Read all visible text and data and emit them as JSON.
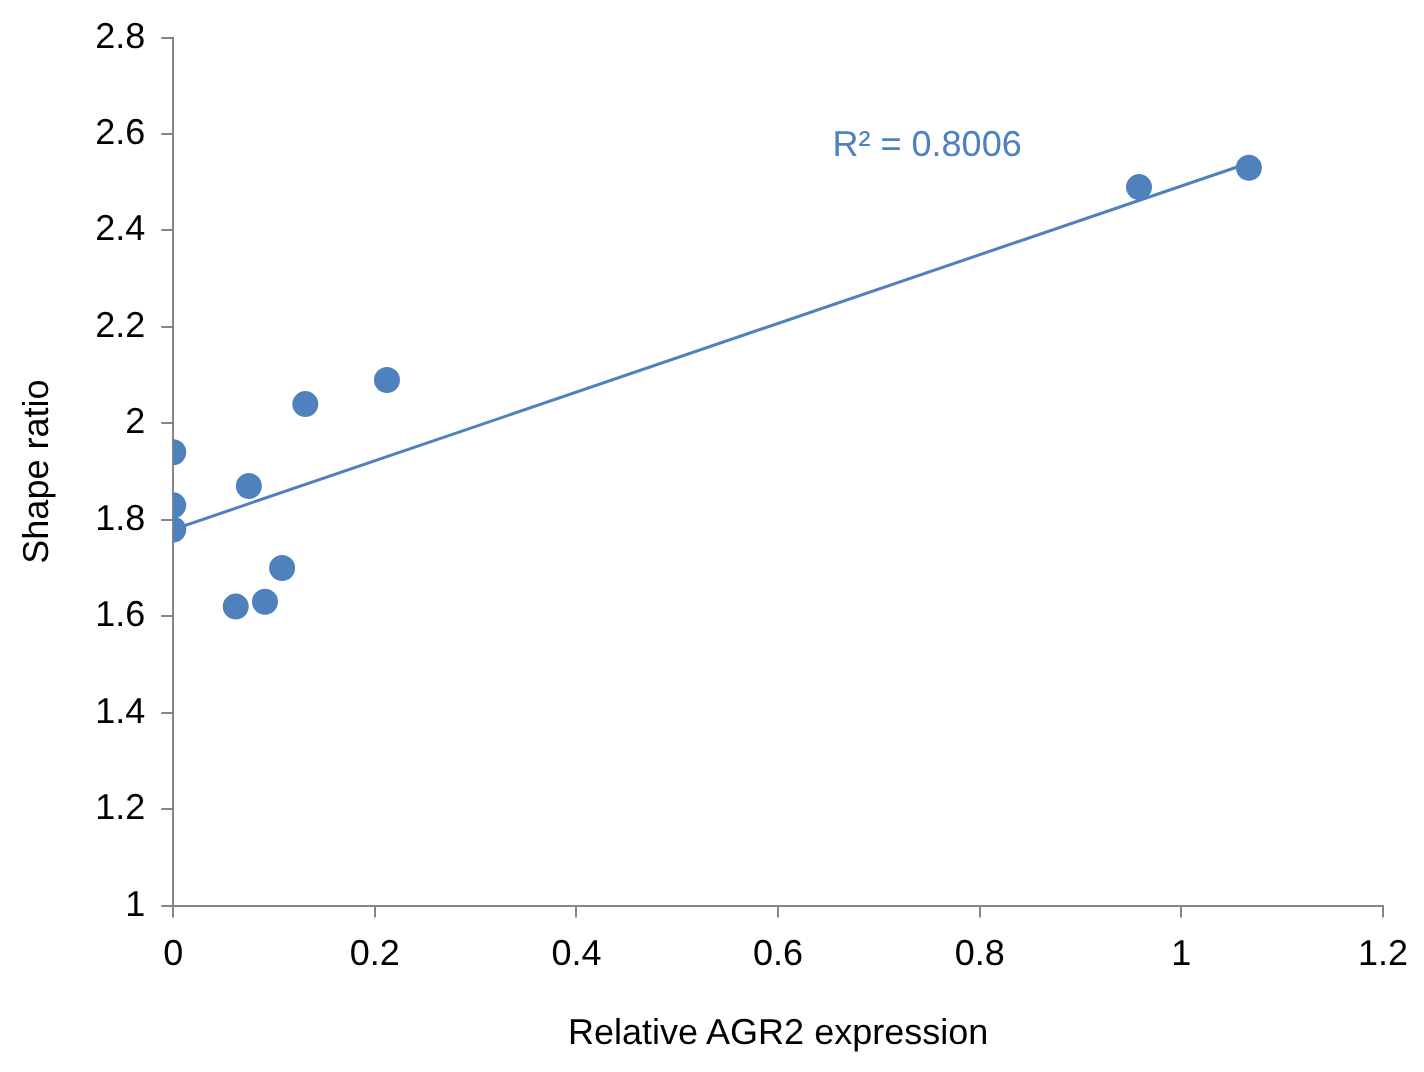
{
  "chart_data": {
    "type": "scatter",
    "xlabel": "Relative AGR2 expression",
    "ylabel": "Shape ratio",
    "xlim": [
      0,
      1.2
    ],
    "xticks": [
      0,
      0.2,
      0.4,
      0.6,
      0.8,
      1,
      1.2
    ],
    "ylim": [
      1,
      2.8
    ],
    "yticks": [
      1,
      1.2,
      1.4,
      1.6,
      1.8,
      2,
      2.2,
      2.4,
      2.6,
      2.8
    ],
    "grid": false,
    "legend": false,
    "marker": "circle",
    "series": [
      {
        "type": "scatter",
        "color": "#4f81bd",
        "x": [
          0,
          0,
          0,
          0.062,
          0.091,
          0.075,
          0.108,
          0.131,
          0.212,
          0.958,
          1.067
        ],
        "values": [
          1.94,
          1.83,
          1.78,
          1.62,
          1.63,
          1.87,
          1.7,
          2.04,
          2.09,
          2.49,
          2.53
        ]
      },
      {
        "type": "line",
        "color": "#4f81bd",
        "x": [
          0,
          1.067
        ],
        "values": [
          1.78,
          2.54
        ],
        "marker": "none",
        "line_style": "solid"
      }
    ],
    "annotations": [
      "R² = 0.8006"
    ]
  }
}
